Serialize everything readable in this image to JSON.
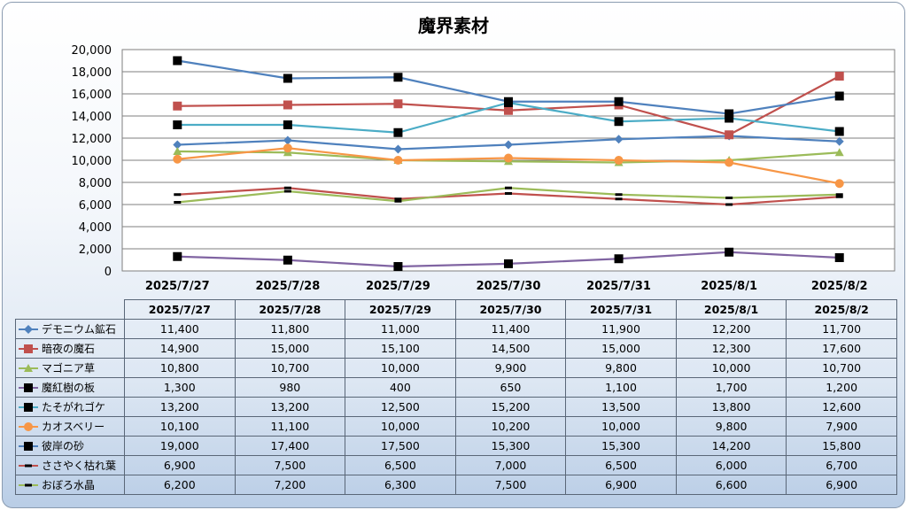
{
  "chart_data": {
    "type": "line",
    "title": "魔界素材",
    "categories": [
      "2025/7/27",
      "2025/7/28",
      "2025/7/29",
      "2025/7/30",
      "2025/7/31",
      "2025/8/1",
      "2025/8/2"
    ],
    "ylim": [
      0,
      20000
    ],
    "yticks": [
      "0",
      "2,000",
      "4,000",
      "6,000",
      "8,000",
      "10,000",
      "12,000",
      "14,000",
      "16,000",
      "18,000",
      "20,000"
    ],
    "grid": true,
    "legend": "data-table",
    "series": [
      {
        "name": "デモニウム鉱石",
        "values": [
          11400,
          11800,
          11000,
          11400,
          11900,
          12200,
          11700
        ],
        "display": [
          "11,400",
          "11,800",
          "11,000",
          "11,400",
          "11,900",
          "12,200",
          "11,700"
        ],
        "color": "#4f81bd",
        "marker": "diamond"
      },
      {
        "name": "暗夜の魔石",
        "values": [
          14900,
          15000,
          15100,
          14500,
          15000,
          12300,
          17600
        ],
        "display": [
          "14,900",
          "15,000",
          "15,100",
          "14,500",
          "15,000",
          "12,300",
          "17,600"
        ],
        "color": "#c0504d",
        "marker": "square"
      },
      {
        "name": "マゴニア草",
        "values": [
          10800,
          10700,
          10000,
          9900,
          9800,
          10000,
          10700
        ],
        "display": [
          "10,800",
          "10,700",
          "10,000",
          "9,900",
          "9,800",
          "10,000",
          "10,700"
        ],
        "color": "#9bbb59",
        "marker": "triangle"
      },
      {
        "name": "魔紅樹の板",
        "values": [
          1300,
          980,
          400,
          650,
          1100,
          1700,
          1200
        ],
        "display": [
          "1,300",
          "980",
          "400",
          "650",
          "1,100",
          "1,700",
          "1,200"
        ],
        "color": "#8064a2",
        "marker": "black-square"
      },
      {
        "name": "たそがれゴケ",
        "values": [
          13200,
          13200,
          12500,
          15200,
          13500,
          13800,
          12600
        ],
        "display": [
          "13,200",
          "13,200",
          "12,500",
          "15,200",
          "13,500",
          "13,800",
          "12,600"
        ],
        "color": "#4bacc6",
        "marker": "black-square"
      },
      {
        "name": "カオスベリー",
        "values": [
          10100,
          11100,
          10000,
          10200,
          10000,
          9800,
          7900
        ],
        "display": [
          "10,100",
          "11,100",
          "10,000",
          "10,200",
          "10,000",
          "9,800",
          "7,900"
        ],
        "color": "#f79646",
        "marker": "circle"
      },
      {
        "name": "彼岸の砂",
        "values": [
          19000,
          17400,
          17500,
          15300,
          15300,
          14200,
          15800
        ],
        "display": [
          "19,000",
          "17,400",
          "17,500",
          "15,300",
          "15,300",
          "14,200",
          "15,800"
        ],
        "color": "#4f81bd",
        "marker": "black-square"
      },
      {
        "name": "ささやく枯れ葉",
        "values": [
          6900,
          7500,
          6500,
          7000,
          6500,
          6000,
          6700
        ],
        "display": [
          "6,900",
          "7,500",
          "6,500",
          "7,000",
          "6,500",
          "6,000",
          "6,700"
        ],
        "color": "#c0504d",
        "marker": "dash"
      },
      {
        "name": "おぼろ水晶",
        "values": [
          6200,
          7200,
          6300,
          7500,
          6900,
          6600,
          6900
        ],
        "display": [
          "6,200",
          "7,200",
          "6,300",
          "7,500",
          "6,900",
          "6,600",
          "6,900"
        ],
        "color": "#9bbb59",
        "marker": "dash"
      }
    ]
  }
}
